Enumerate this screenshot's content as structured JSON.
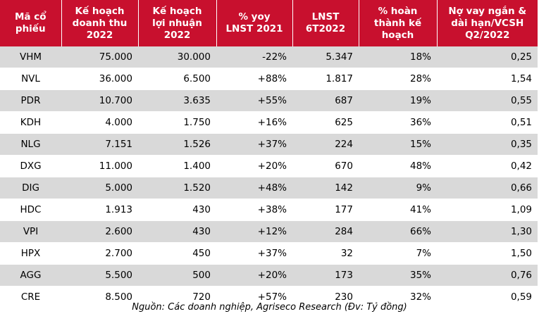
{
  "header": {
    "col1": "Mã cổ phiếu",
    "col2": "Kế hoạch doanh thu 2022",
    "col3": "Kế hoạch lợi nhuận 2022",
    "col4": "% yoy LNST 2021",
    "col5": "LNST 6T2022",
    "col6": "% hoàn thành kế hoạch",
    "col7": "Nợ vay ngắn & dài hạn/VCSH Q2/2022"
  },
  "rows": [
    {
      "code": "VHM",
      "revenue_plan": "75.000",
      "profit_plan": "30.000",
      "yoy": "-22%",
      "lnst_6t": "5.347",
      "completion": "18%",
      "debt_ratio": "0,25"
    },
    {
      "code": "NVL",
      "revenue_plan": "36.000",
      "profit_plan": "6.500",
      "yoy": "+88%",
      "lnst_6t": "1.817",
      "completion": "28%",
      "debt_ratio": "1,54"
    },
    {
      "code": "PDR",
      "revenue_plan": "10.700",
      "profit_plan": "3.635",
      "yoy": "+55%",
      "lnst_6t": "687",
      "completion": "19%",
      "debt_ratio": "0,55"
    },
    {
      "code": "KDH",
      "revenue_plan": "4.000",
      "profit_plan": "1.750",
      "yoy": "+16%",
      "lnst_6t": "625",
      "completion": "36%",
      "debt_ratio": "0,51"
    },
    {
      "code": "NLG",
      "revenue_plan": "7.151",
      "profit_plan": "1.526",
      "yoy": "+37%",
      "lnst_6t": "224",
      "completion": "15%",
      "debt_ratio": "0,35"
    },
    {
      "code": "DXG",
      "revenue_plan": "11.000",
      "profit_plan": "1.400",
      "yoy": "+20%",
      "lnst_6t": "670",
      "completion": "48%",
      "debt_ratio": "0,42"
    },
    {
      "code": "DIG",
      "revenue_plan": "5.000",
      "profit_plan": "1.520",
      "yoy": "+48%",
      "lnst_6t": "142",
      "completion": "9%",
      "debt_ratio": "0,66"
    },
    {
      "code": "HDC",
      "revenue_plan": "1.913",
      "profit_plan": "430",
      "yoy": "+38%",
      "lnst_6t": "177",
      "completion": "41%",
      "debt_ratio": "1,09"
    },
    {
      "code": "VPI",
      "revenue_plan": "2.600",
      "profit_plan": "430",
      "yoy": "+12%",
      "lnst_6t": "284",
      "completion": "66%",
      "debt_ratio": "1,30"
    },
    {
      "code": "HPX",
      "revenue_plan": "2.700",
      "profit_plan": "450",
      "yoy": "+37%",
      "lnst_6t": "32",
      "completion": "7%",
      "debt_ratio": "1,50"
    },
    {
      "code": "AGG",
      "revenue_plan": "5.500",
      "profit_plan": "500",
      "yoy": "+20%",
      "lnst_6t": "173",
      "completion": "35%",
      "debt_ratio": "0,76"
    },
    {
      "code": "CRE",
      "revenue_plan": "8.500",
      "profit_plan": "720",
      "yoy": "+57%",
      "lnst_6t": "230",
      "completion": "32%",
      "debt_ratio": "0,59"
    }
  ],
  "source": "Nguồn: Các doanh nghiệp, Agriseco Research (Đv: Tỷ đồng)",
  "colors": {
    "header_bg": "#c8102e",
    "header_text": "#ffffff",
    "row_shade": "#d9d9d9",
    "row_plain": "#ffffff"
  }
}
